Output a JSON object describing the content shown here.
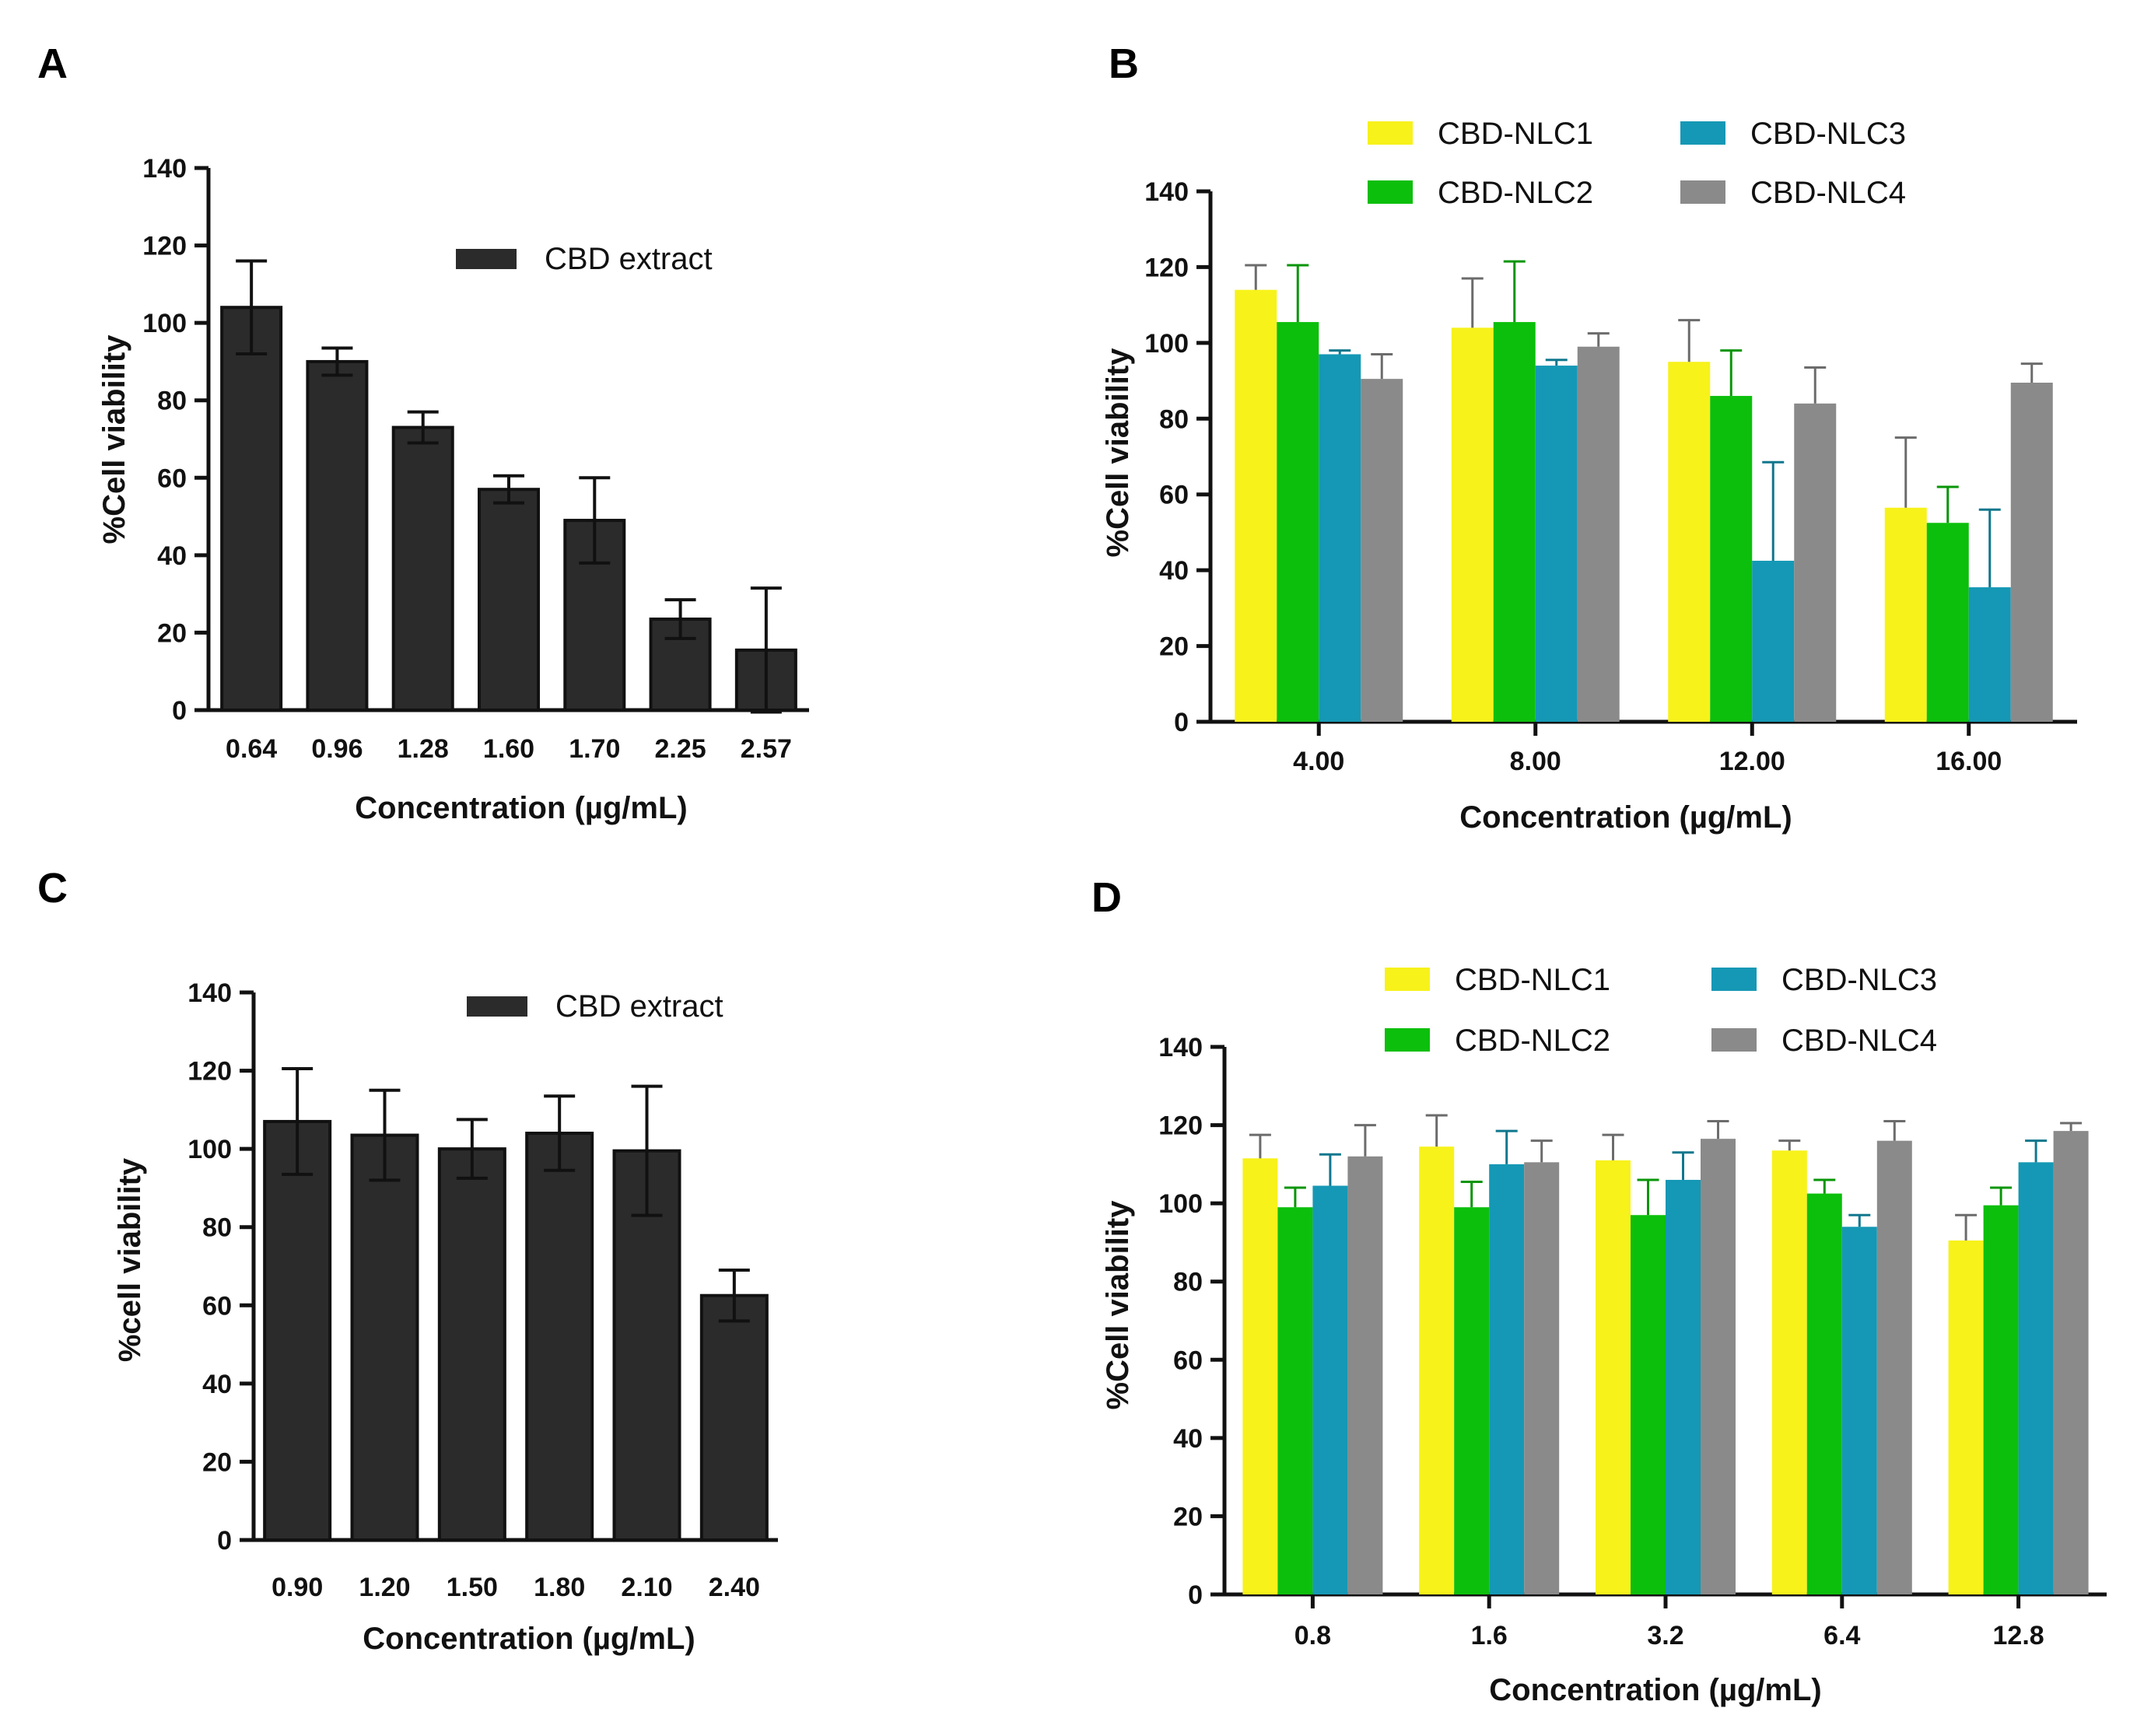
{
  "chart_data": [
    {
      "panel": "A",
      "type": "bar",
      "xlabel": "Concentration (µg/mL)",
      "ylabel": "%Cell viability",
      "ylim": [
        0,
        140
      ],
      "yticks": [
        0,
        20,
        40,
        60,
        80,
        100,
        120,
        140
      ],
      "categories": [
        "0.64",
        "0.96",
        "1.28",
        "1.60",
        "1.70",
        "2.25",
        "2.57"
      ],
      "series": [
        {
          "name": "CBD extract",
          "color": "#2b2b2b",
          "values": [
            104,
            90,
            73,
            57,
            49,
            23.5,
            15.5
          ],
          "errors": [
            12,
            3.5,
            4,
            3.5,
            11,
            5,
            16
          ]
        }
      ]
    },
    {
      "panel": "B",
      "type": "bar",
      "xlabel": "Concentration (µg/mL)",
      "ylabel": "%Cell viability",
      "ylim": [
        0,
        140
      ],
      "yticks": [
        0,
        20,
        40,
        60,
        80,
        100,
        120,
        140
      ],
      "categories": [
        "4.00",
        "8.00",
        "12.00",
        "16.00"
      ],
      "series": [
        {
          "name": "CBD-NLC1",
          "color": "#f7f21a",
          "values": [
            114,
            104,
            95,
            56.5
          ],
          "errors": [
            6.5,
            13,
            11,
            18.5
          ]
        },
        {
          "name": "CBD-NLC2",
          "color": "#0cbf0c",
          "values": [
            105.5,
            105.5,
            86,
            52.5
          ],
          "errors": [
            15,
            16,
            12,
            9.5
          ]
        },
        {
          "name": "CBD-NLC3",
          "color": "#1598b5",
          "values": [
            97,
            94,
            42.5,
            35.5
          ],
          "errors": [
            1,
            1.5,
            26,
            20.5
          ]
        },
        {
          "name": "CBD-NLC4",
          "color": "#8a8a8a",
          "values": [
            90.5,
            99,
            84,
            89.5
          ],
          "errors": [
            6.5,
            3.5,
            9.5,
            5
          ]
        }
      ]
    },
    {
      "panel": "C",
      "type": "bar",
      "xlabel": "Concentration (µg/mL)",
      "ylabel": "%cell viability",
      "ylim": [
        0,
        140
      ],
      "yticks": [
        0,
        20,
        40,
        60,
        80,
        100,
        120,
        140
      ],
      "categories": [
        "0.90",
        "1.20",
        "1.50",
        "1.80",
        "2.10",
        "2.40"
      ],
      "series": [
        {
          "name": "CBD extract",
          "color": "#2b2b2b",
          "values": [
            107,
            103.5,
            100,
            104,
            99.5,
            62.5
          ],
          "errors": [
            13.5,
            11.5,
            7.5,
            9.5,
            16.5,
            6.5
          ]
        }
      ]
    },
    {
      "panel": "D",
      "type": "bar",
      "xlabel": "Concentration (µg/mL)",
      "ylabel": "%Cell viability",
      "ylim": [
        0,
        140
      ],
      "yticks": [
        0,
        20,
        40,
        60,
        80,
        100,
        120,
        140
      ],
      "categories": [
        "0.8",
        "1.6",
        "3.2",
        "6.4",
        "12.8"
      ],
      "series": [
        {
          "name": "CBD-NLC1",
          "color": "#f7f21a",
          "values": [
            111.5,
            114.5,
            111,
            113.5,
            90.5
          ],
          "errors": [
            6,
            8,
            6.5,
            2.5,
            6.5
          ]
        },
        {
          "name": "CBD-NLC2",
          "color": "#0cbf0c",
          "values": [
            99,
            99,
            97,
            102.5,
            99.5
          ],
          "errors": [
            5,
            6.5,
            9,
            3.5,
            4.5
          ]
        },
        {
          "name": "CBD-NLC3",
          "color": "#1598b5",
          "values": [
            104.5,
            110,
            106,
            94,
            110.5
          ],
          "errors": [
            8,
            8.5,
            7,
            3,
            5.5
          ]
        },
        {
          "name": "CBD-NLC4",
          "color": "#8a8a8a",
          "values": [
            112,
            110.5,
            116.5,
            116,
            118.5
          ],
          "errors": [
            8,
            5.5,
            4.5,
            5,
            2
          ]
        }
      ]
    }
  ]
}
